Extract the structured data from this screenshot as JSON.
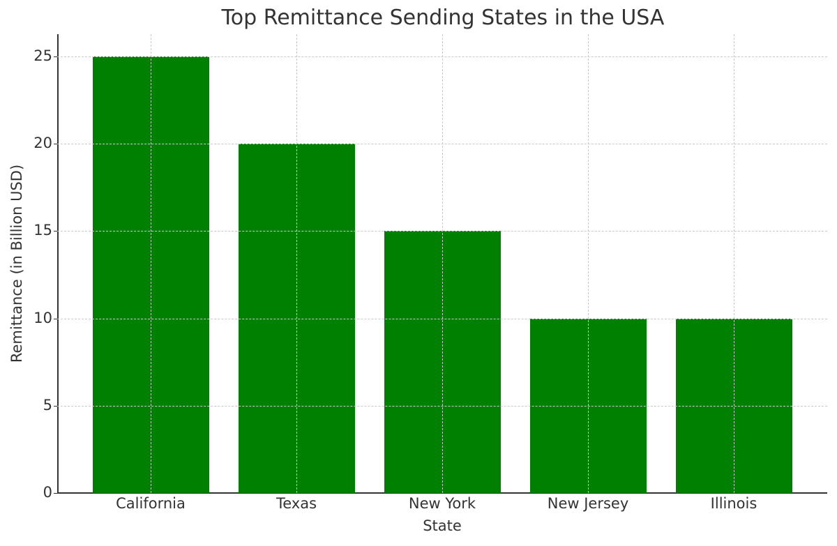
{
  "chart_data": {
    "type": "bar",
    "title": "Top Remittance Sending States in the USA",
    "xlabel": "State",
    "ylabel": "Remittance (in Billion USD)",
    "categories": [
      "California",
      "Texas",
      "New York",
      "New Jersey",
      "Illinois"
    ],
    "values": [
      25,
      20,
      15,
      10,
      10
    ],
    "ylim": [
      0,
      26.25
    ],
    "yticks": [
      "0",
      "5",
      "10",
      "15",
      "20",
      "25"
    ],
    "grid": true,
    "legend": null,
    "bar_color": "#008000"
  }
}
